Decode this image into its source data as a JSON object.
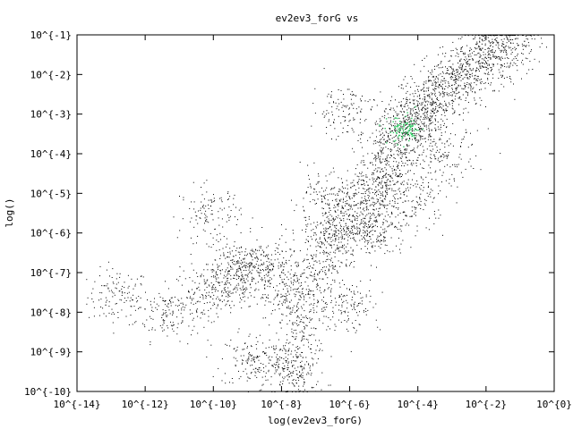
{
  "chart_data": {
    "type": "scatter",
    "title": "ev2ev3_forG vs",
    "xlabel": "log(ev2ev3_forG)",
    "ylabel": "log()",
    "x_scale": "log10",
    "y_scale": "log10",
    "xlim": [
      -14,
      0
    ],
    "ylim": [
      -10,
      -1
    ],
    "grid": false,
    "x_ticks": [
      -14,
      -12,
      -10,
      -8,
      -6,
      -4,
      -2,
      0
    ],
    "x_tick_labels": [
      "10^{-14}",
      "10^{-12}",
      "10^{-10}",
      "10^{-8}",
      "10^{-6}",
      "10^{-4}",
      "10^{-2}",
      "10^{0}"
    ],
    "y_ticks": [
      -1,
      -2,
      -3,
      -4,
      -5,
      -6,
      -7,
      -8,
      -9,
      -10
    ],
    "y_tick_labels": [
      "10^{-1}",
      "10^{-2}",
      "10^{-3}",
      "10^{-4}",
      "10^{-5}",
      "10^{-6}",
      "10^{-7}",
      "10^{-8}",
      "10^{-9}",
      "10^{-10}"
    ],
    "point_color": "#000000",
    "density_highlight_color": "#33cc66",
    "dense_region_center": [
      -4.4,
      -3.4
    ],
    "points": [
      [
        -12.8,
        -7.6
      ],
      [
        -11.4,
        -8.0
      ],
      [
        -10.3,
        -7.6
      ],
      [
        -9.6,
        -7.3
      ],
      [
        -9.0,
        -7.0
      ],
      [
        -8.9,
        -9.2
      ],
      [
        -8.0,
        -9.3
      ],
      [
        -7.6,
        -9.5
      ],
      [
        -9.3,
        -6.9
      ],
      [
        -10.1,
        -5.5
      ],
      [
        -8.4,
        -6.8
      ],
      [
        -7.9,
        -7.3
      ],
      [
        -7.4,
        -7.6
      ],
      [
        -6.9,
        -6.7
      ],
      [
        -6.5,
        -6.1
      ],
      [
        -6.2,
        -5.9
      ],
      [
        -5.9,
        -5.3
      ],
      [
        -5.6,
        -5.6
      ],
      [
        -5.3,
        -4.9
      ],
      [
        -5.0,
        -4.6
      ],
      [
        -4.8,
        -4.1
      ],
      [
        -4.6,
        -3.7
      ],
      [
        -4.4,
        -3.4
      ],
      [
        -4.2,
        -3.2
      ],
      [
        -4.0,
        -3.0
      ],
      [
        -3.7,
        -2.8
      ],
      [
        -3.4,
        -2.5
      ],
      [
        -3.1,
        -2.3
      ],
      [
        -2.8,
        -2.0
      ],
      [
        -2.4,
        -1.8
      ],
      [
        -2.0,
        -1.6
      ],
      [
        -1.6,
        -1.3
      ],
      [
        -1.3,
        -1.2
      ],
      [
        -6.2,
        -2.9
      ],
      [
        -6.8,
        -5.2
      ],
      [
        -7.4,
        -8.4
      ],
      [
        -6.0,
        -7.8
      ],
      [
        -5.2,
        -6.0
      ],
      [
        -4.1,
        -5.2
      ],
      [
        -3.2,
        -4.1
      ]
    ]
  }
}
